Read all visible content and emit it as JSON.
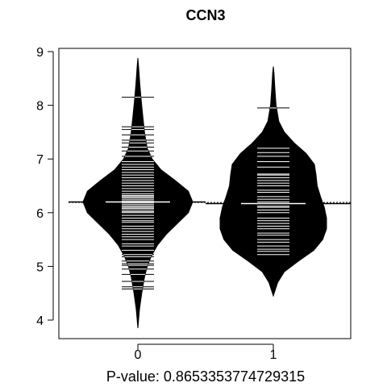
{
  "chart_data": {
    "type": "beanplot",
    "title": "CCN3",
    "subtitle": "P-value: 0.8653353774729315",
    "xlabel": "",
    "ylabel": "",
    "categories": [
      "0",
      "1"
    ],
    "yticks": [
      4,
      5,
      6,
      7,
      8,
      9
    ],
    "ylim": [
      3.75,
      9.1
    ],
    "grid": false,
    "overall_mean": 6.19,
    "groups": [
      {
        "name": "0",
        "mean": 6.2,
        "range": [
          3.85,
          8.88
        ],
        "density_profile": [
          [
            3.85,
            0.0
          ],
          [
            4.2,
            0.03
          ],
          [
            4.5,
            0.07
          ],
          [
            4.8,
            0.12
          ],
          [
            5.0,
            0.17
          ],
          [
            5.2,
            0.25
          ],
          [
            5.4,
            0.36
          ],
          [
            5.6,
            0.52
          ],
          [
            5.8,
            0.72
          ],
          [
            6.0,
            0.92
          ],
          [
            6.2,
            1.0
          ],
          [
            6.4,
            0.92
          ],
          [
            6.6,
            0.68
          ],
          [
            6.8,
            0.42
          ],
          [
            7.0,
            0.26
          ],
          [
            7.2,
            0.17
          ],
          [
            7.5,
            0.12
          ],
          [
            7.8,
            0.09
          ],
          [
            8.1,
            0.06
          ],
          [
            8.4,
            0.035
          ],
          [
            8.7,
            0.015
          ],
          [
            8.88,
            0.0
          ]
        ],
        "observations": [
          4.58,
          4.62,
          4.72,
          4.85,
          4.95,
          5.02,
          5.05,
          5.1,
          5.18,
          5.22,
          5.3,
          5.38,
          5.42,
          5.5,
          5.55,
          5.6,
          5.65,
          5.7,
          5.75,
          5.82,
          5.85,
          5.9,
          5.95,
          6.0,
          6.02,
          6.05,
          6.08,
          6.1,
          6.12,
          6.15,
          6.18,
          6.2,
          6.22,
          6.25,
          6.28,
          6.3,
          6.32,
          6.35,
          6.4,
          6.45,
          6.5,
          6.55,
          6.6,
          6.65,
          6.7,
          6.75,
          6.8,
          6.85,
          6.9,
          6.95,
          7.05,
          7.15,
          7.22,
          7.3,
          7.35,
          7.45,
          7.55,
          7.6,
          8.15
        ]
      },
      {
        "name": "1",
        "mean": 6.17,
        "range": [
          4.45,
          8.72
        ],
        "density_profile": [
          [
            4.45,
            0.0
          ],
          [
            4.7,
            0.08
          ],
          [
            4.9,
            0.2
          ],
          [
            5.1,
            0.46
          ],
          [
            5.3,
            0.74
          ],
          [
            5.5,
            0.9
          ],
          [
            5.7,
            0.97
          ],
          [
            5.9,
            0.97
          ],
          [
            6.1,
            0.93
          ],
          [
            6.3,
            0.86
          ],
          [
            6.5,
            0.8
          ],
          [
            6.7,
            0.78
          ],
          [
            6.9,
            0.75
          ],
          [
            7.1,
            0.6
          ],
          [
            7.3,
            0.38
          ],
          [
            7.5,
            0.2
          ],
          [
            7.7,
            0.1
          ],
          [
            8.0,
            0.05
          ],
          [
            8.3,
            0.03
          ],
          [
            8.6,
            0.012
          ],
          [
            8.72,
            0.0
          ]
        ],
        "observations": [
          5.22,
          5.28,
          5.32,
          5.38,
          5.45,
          5.5,
          5.58,
          5.62,
          5.7,
          5.75,
          5.8,
          5.85,
          5.9,
          6.0,
          6.05,
          6.1,
          6.12,
          6.2,
          6.25,
          6.3,
          6.38,
          6.42,
          6.5,
          6.55,
          6.6,
          6.65,
          6.7,
          6.72,
          6.85,
          6.95,
          7.05,
          7.12,
          7.2,
          7.95
        ]
      }
    ]
  }
}
